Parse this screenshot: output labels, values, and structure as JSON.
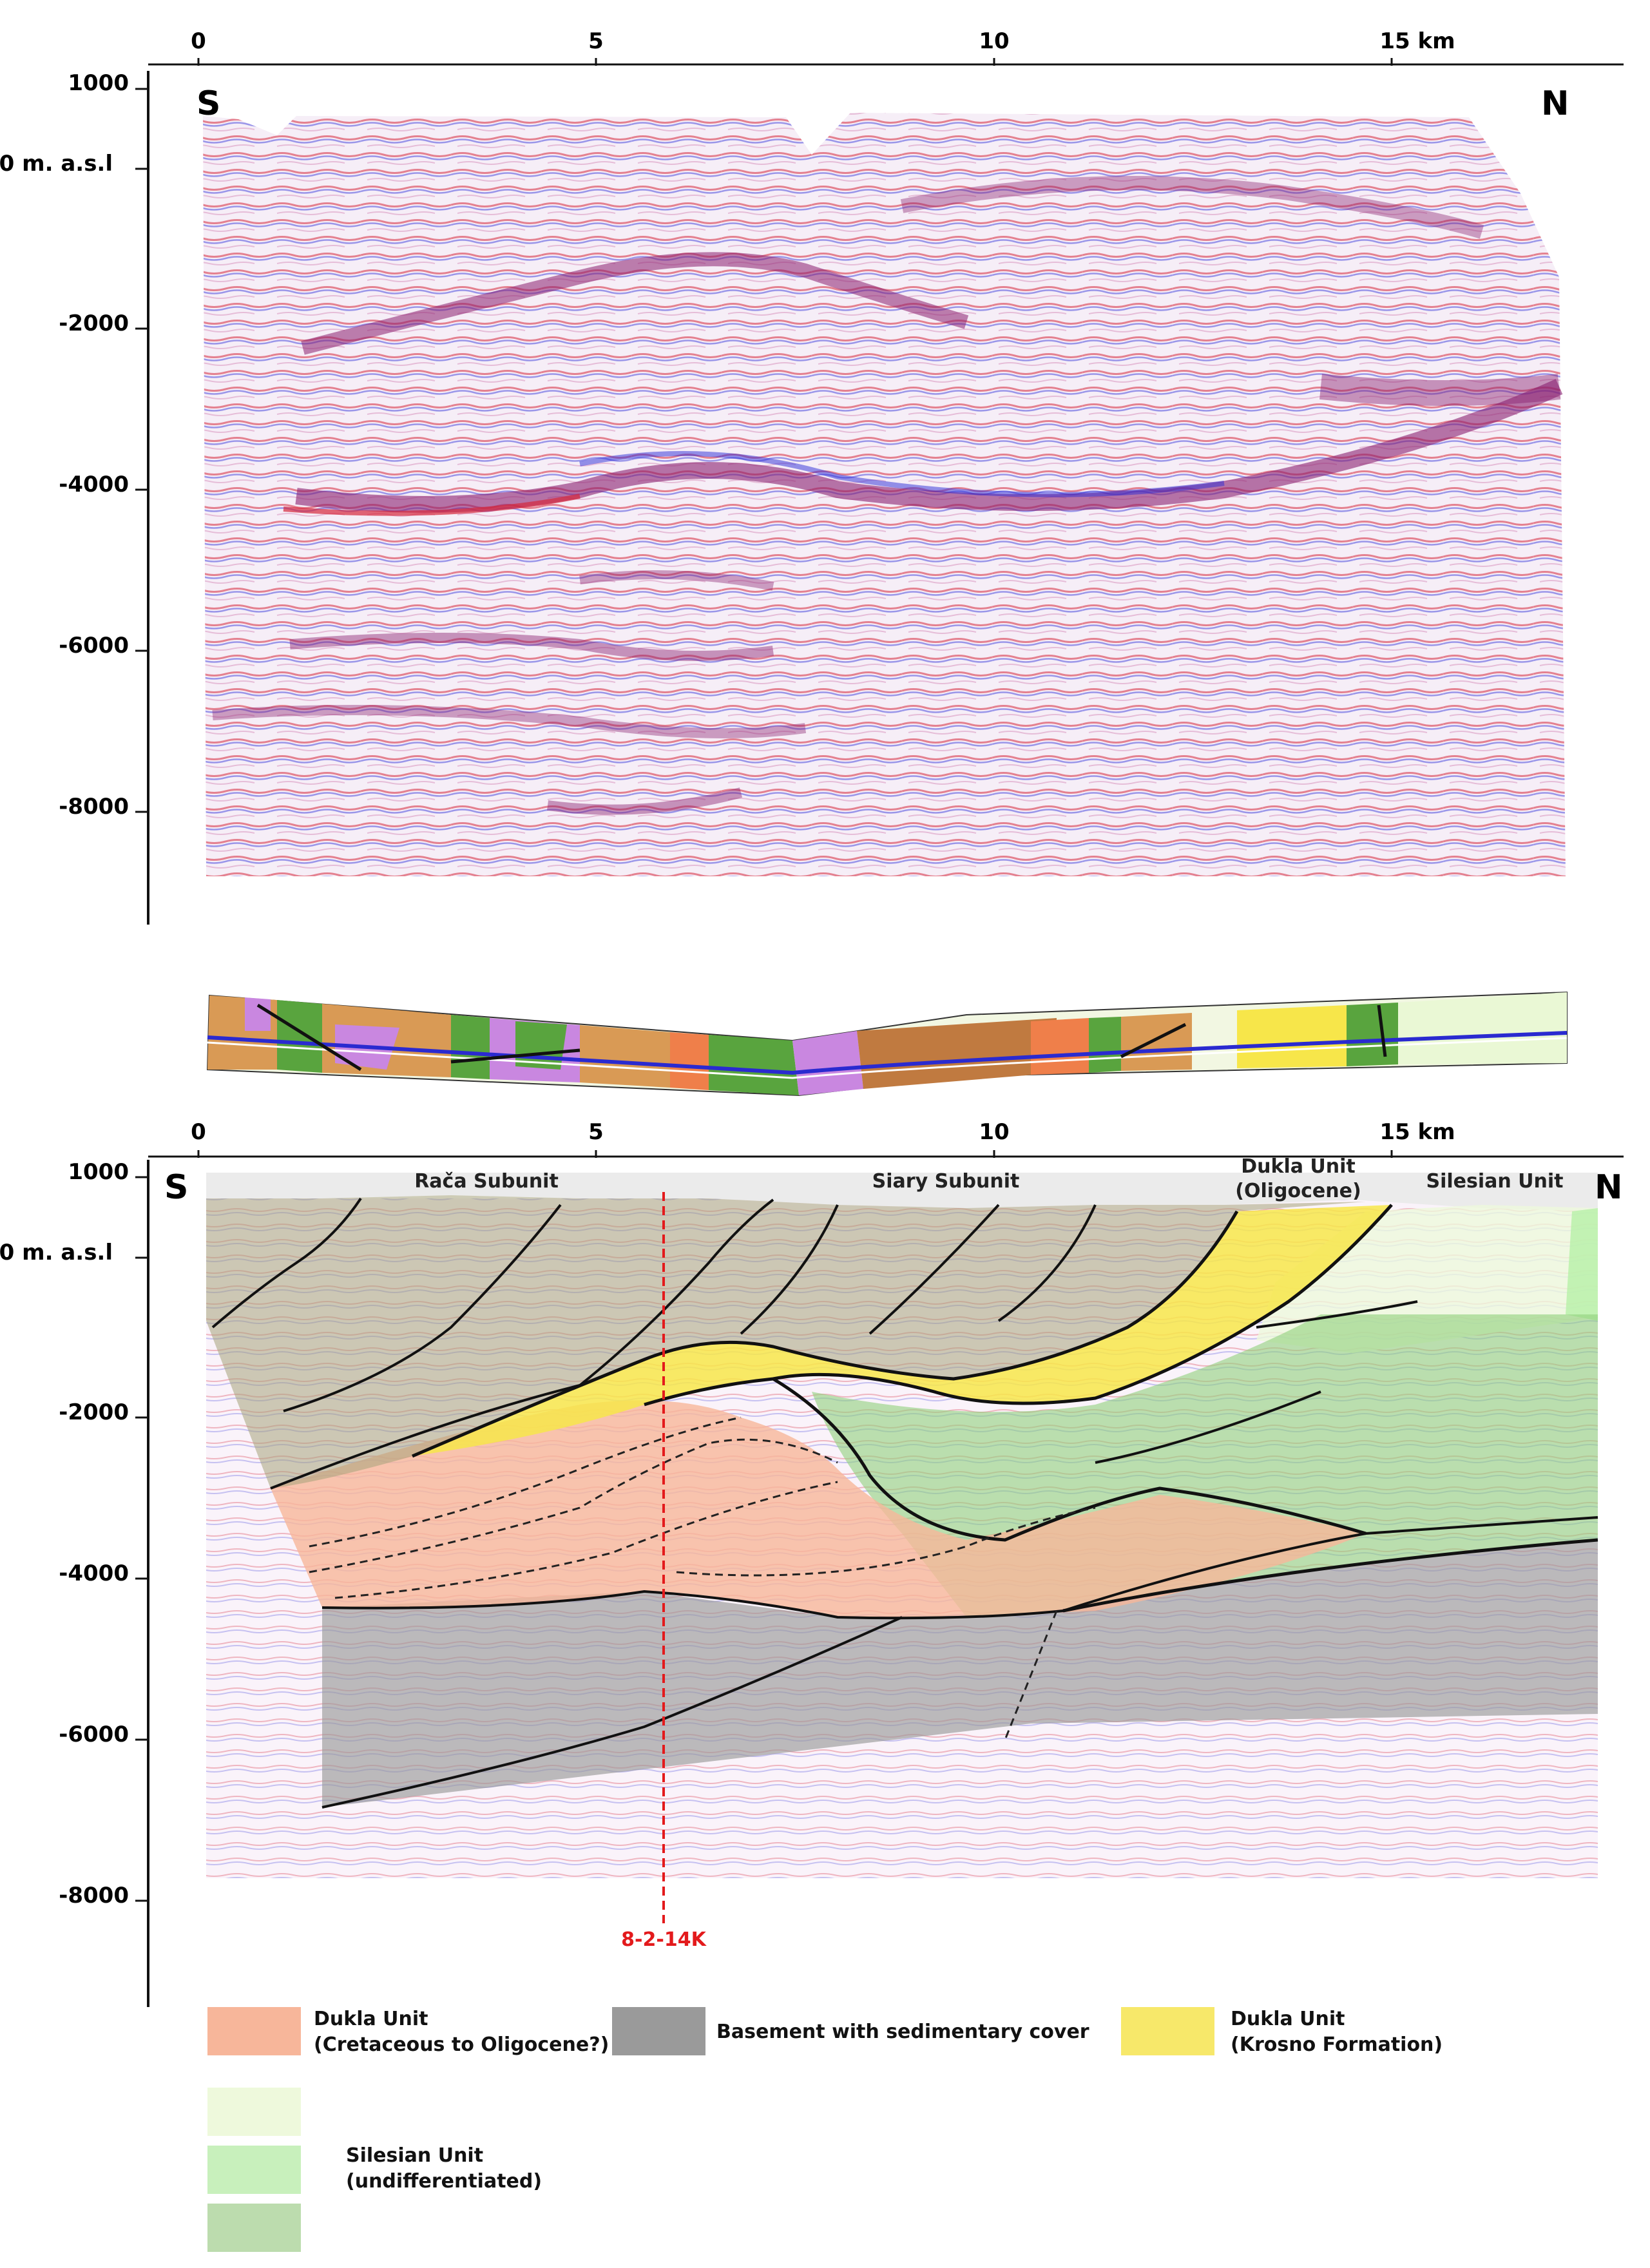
{
  "top_section": {
    "x_ticks": [
      "0",
      "5",
      "10",
      "15 km"
    ],
    "y_ticks": [
      "1000",
      "0 m. a.s.l",
      "-2000",
      "-4000",
      "-6000",
      "-8000"
    ],
    "left_direction": "S",
    "right_direction": "N"
  },
  "bottom_section": {
    "x_ticks": [
      "0",
      "5",
      "10",
      "15 km"
    ],
    "y_ticks": [
      "1000",
      "0 m. a.s.l",
      "-2000",
      "-4000",
      "-6000",
      "-8000"
    ],
    "left_direction": "S",
    "right_direction": "N",
    "unit_labels": {
      "raca": "Rača Subunit",
      "siary": "Siary Subunit",
      "dukla_line1": "Dukla Unit",
      "dukla_line2": "(Oligocene)",
      "silesian": "Silesian Unit"
    },
    "well_label": "8-2-14K"
  },
  "legend": {
    "dukla_cretaceous_line1": "Dukla Unit",
    "dukla_cretaceous_line2": "(Cretaceous to Oligocene?)",
    "basement": "Basement with sedimentary cover",
    "dukla_krosno_line1": "Dukla Unit",
    "dukla_krosno_line2": "(Krosno Formation)",
    "silesian_line1": "Silesian Unit",
    "silesian_line2": "(undifferentiated)"
  },
  "colors": {
    "dukla_cretaceous": "#f7b69a",
    "basement": "#9a9a9a",
    "dukla_krosno": "#f7e86a",
    "silesian_light": "#eef9dc",
    "silesian_mid": "#c8f0bc",
    "silesian_dark": "#bcdcae",
    "raca_overlay": "#a5a37a",
    "well_line": "#e31a1c",
    "seismic_red": "#d5283c",
    "seismic_blue": "#2b2bd8"
  }
}
